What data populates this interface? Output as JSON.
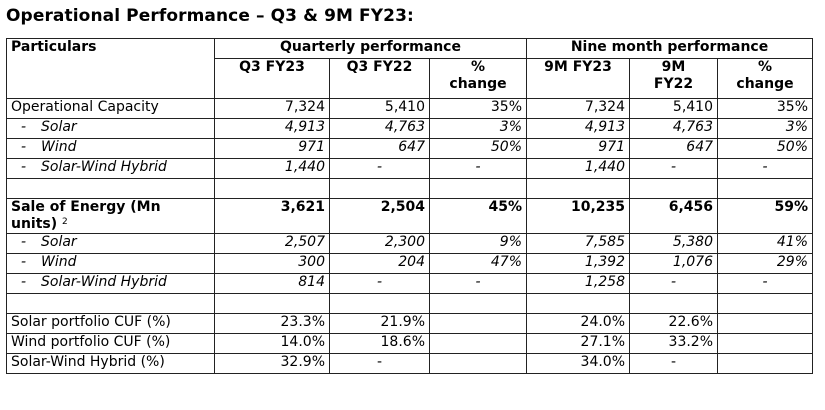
{
  "title": "Operational Performance – Q3 & 9M FY23:",
  "header": {
    "particulars": "Particulars",
    "quarterly": "Quarterly performance",
    "ninemonth": "Nine month performance",
    "q3fy23": "Q3 FY23",
    "q3fy22": "Q3 FY22",
    "pct_change_line1": "%",
    "pct_change_line2": "change",
    "m9fy23": "9M FY23",
    "m9fy22_line1": "9M",
    "m9fy22_line2": "FY22"
  },
  "rows": {
    "op_cap": {
      "label": "Operational Capacity",
      "q3fy23": "7,324",
      "q3fy22": "5,410",
      "qchg": "35%",
      "m9fy23": "7,324",
      "m9fy22": "5,410",
      "mchg": "35%"
    },
    "op_solar": {
      "dash": "-",
      "label": "Solar",
      "q3fy23": "4,913",
      "q3fy22": "4,763",
      "qchg": "3%",
      "m9fy23": "4,913",
      "m9fy22": "4,763",
      "mchg": "3%"
    },
    "op_wind": {
      "dash": "-",
      "label": "Wind",
      "q3fy23": "971",
      "q3fy22": "647",
      "qchg": "50%",
      "m9fy23": "971",
      "m9fy22": "647",
      "mchg": "50%"
    },
    "op_hybrid": {
      "dash": "-",
      "label": "Solar-Wind Hybrid",
      "q3fy23": "1,440",
      "q3fy22": "-",
      "qchg": "-",
      "m9fy23": "1,440",
      "m9fy22": "-",
      "mchg": "-"
    },
    "soe": {
      "label_line1": "Sale of Energy (Mn",
      "label_line2": "units)",
      "footnote": "2",
      "q3fy23": "3,621",
      "q3fy22": "2,504",
      "qchg": "45%",
      "m9fy23": "10,235",
      "m9fy22": "6,456",
      "mchg": "59%"
    },
    "soe_solar": {
      "dash": "-",
      "label": "Solar",
      "q3fy23": "2,507",
      "q3fy22": "2,300",
      "qchg": "9%",
      "m9fy23": "7,585",
      "m9fy22": "5,380",
      "mchg": "41%"
    },
    "soe_wind": {
      "dash": "-",
      "label": "Wind",
      "q3fy23": "300",
      "q3fy22": "204",
      "qchg": "47%",
      "m9fy23": "1,392",
      "m9fy22": "1,076",
      "mchg": "29%"
    },
    "soe_hybrid": {
      "dash": "-",
      "label": "Solar-Wind Hybrid",
      "q3fy23": "814",
      "q3fy22": "-",
      "qchg": "-",
      "m9fy23": "1,258",
      "m9fy22": "-",
      "mchg": "-"
    },
    "cuf_solar": {
      "label": "Solar portfolio CUF (%)",
      "q3fy23": "23.3%",
      "q3fy22": "21.9%",
      "qchg": "",
      "m9fy23": "24.0%",
      "m9fy22": "22.6%",
      "mchg": ""
    },
    "cuf_wind": {
      "label": "Wind portfolio CUF (%)",
      "q3fy23": "14.0%",
      "q3fy22": "18.6%",
      "qchg": "",
      "m9fy23": "27.1%",
      "m9fy22": "33.2%",
      "mchg": ""
    },
    "cuf_hybrid": {
      "label": "Solar-Wind Hybrid (%)",
      "q3fy23": "32.9%",
      "q3fy22": "-",
      "qchg": "",
      "m9fy23": "34.0%",
      "m9fy22": "-",
      "mchg": ""
    }
  }
}
